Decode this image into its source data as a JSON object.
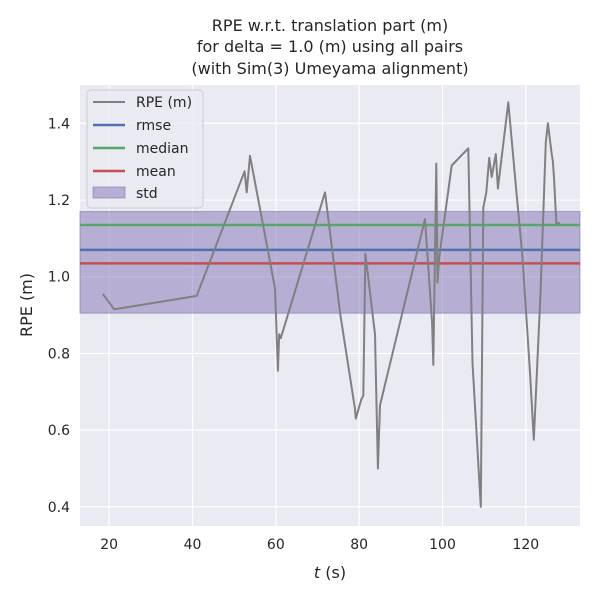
{
  "chart_data": {
    "type": "line",
    "title_lines": [
      "RPE w.r.t. translation part (m)",
      "for delta = 1.0 (m) using all pairs",
      "(with Sim(3) Umeyama alignment)"
    ],
    "xlabel_var": "t",
    "xlabel_unit": " (s)",
    "ylabel": "RPE (m)",
    "xlim": [
      13,
      133
    ],
    "ylim": [
      0.35,
      1.5
    ],
    "xticks": [
      20,
      40,
      60,
      80,
      100,
      120
    ],
    "yticks": [
      0.4,
      0.6,
      0.8,
      1.0,
      1.2,
      1.4
    ],
    "ytick_labels": [
      "0.4",
      "0.6",
      "0.8",
      "1.0",
      "1.2",
      "1.4"
    ],
    "grid": true,
    "legend_position": "top-left",
    "series": [
      {
        "name": "RPE (m)",
        "color": "#808080",
        "x": [
          18.5,
          21.2,
          41.0,
          52.5,
          53.0,
          53.8,
          59.8,
          60.5,
          60.8,
          61.2,
          71.8,
          75.5,
          79.0,
          79.2,
          80.5,
          81.0,
          81.5,
          83.8,
          84.5,
          85.0,
          95.8,
          97.5,
          97.8,
          98.5,
          98.8,
          99.2,
          102.2,
          106.2,
          107.2,
          109.2,
          109.8,
          110.5,
          111.2,
          111.8,
          112.8,
          113.3,
          115.8,
          117.5,
          119.2,
          121.0,
          121.9,
          123.5,
          124.8,
          125.3,
          126.2,
          126.5,
          126.8,
          127.3,
          128.2
        ],
        "y": [
          0.955,
          0.915,
          0.95,
          1.275,
          1.22,
          1.315,
          0.97,
          0.755,
          0.85,
          0.84,
          1.22,
          0.9,
          0.655,
          0.63,
          0.68,
          0.69,
          1.06,
          0.85,
          0.5,
          0.665,
          1.15,
          0.88,
          0.77,
          1.295,
          0.985,
          1.05,
          1.29,
          1.335,
          0.775,
          0.4,
          1.18,
          1.22,
          1.31,
          1.26,
          1.32,
          1.23,
          1.455,
          1.25,
          1.05,
          0.75,
          0.575,
          0.95,
          1.35,
          1.4,
          1.32,
          1.3,
          1.25,
          1.14,
          1.14
        ]
      },
      {
        "name": "rmse",
        "color": "#4c72b0",
        "value": 1.07
      },
      {
        "name": "median",
        "color": "#55a868",
        "value": 1.135
      },
      {
        "name": "mean",
        "color": "#c44e52",
        "value": 1.035
      },
      {
        "name": "std",
        "color": "#8172b3",
        "range": [
          0.905,
          1.17
        ]
      }
    ]
  }
}
